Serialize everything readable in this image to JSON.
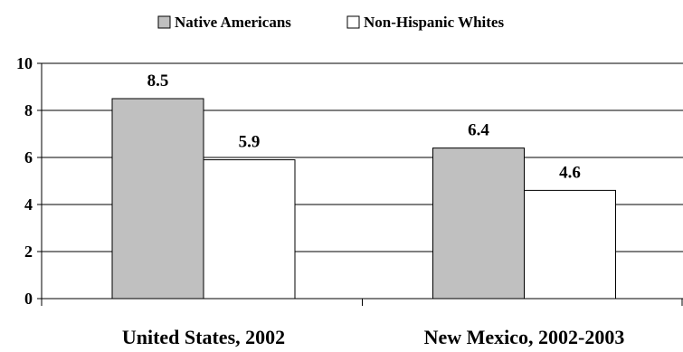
{
  "chart_data": {
    "type": "bar",
    "categories": [
      "United States, 2002",
      "New Mexico, 2002-2003"
    ],
    "series": [
      {
        "name": "Native Americans",
        "values": [
          8.5,
          6.4
        ],
        "color": "#c0c0c0"
      },
      {
        "name": "Non-Hispanic Whites",
        "values": [
          5.9,
          4.6
        ],
        "color": "#ffffff"
      }
    ],
    "data_labels": [
      [
        "8.5",
        "6.4"
      ],
      [
        "5.9",
        "4.6"
      ]
    ],
    "yticks": [
      "0",
      "2",
      "4",
      "6",
      "8",
      "10"
    ],
    "ylim": [
      0,
      10
    ],
    "grid": true,
    "legend_position": "top-center",
    "title": "",
    "xlabel": "",
    "ylabel": ""
  }
}
